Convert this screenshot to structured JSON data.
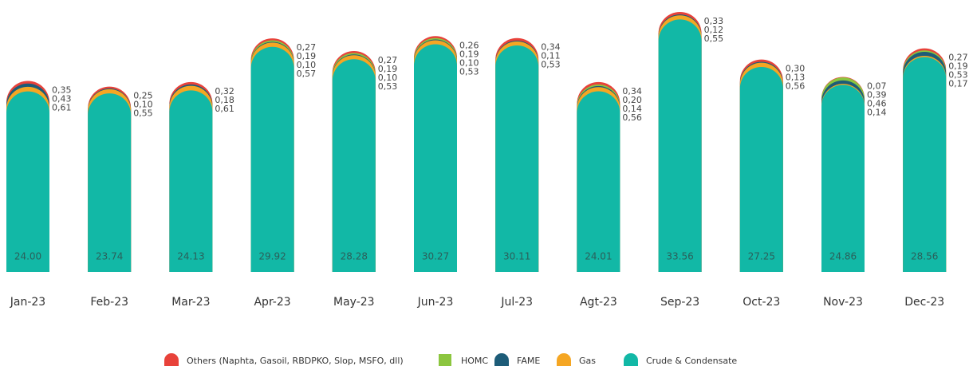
{
  "chart_data": {
    "type": "bar",
    "stacked": true,
    "categories": [
      "Jan-23",
      "Feb-23",
      "Mar-23",
      "Apr-23",
      "May-23",
      "Jun-23",
      "Jul-23",
      "Agt-23",
      "Sep-23",
      "Oct-23",
      "Nov-23",
      "Dec-23"
    ],
    "series": [
      {
        "name": "Crude & Condensate",
        "color": "#12b8a6",
        "values": [
          24.0,
          23.74,
          24.13,
          29.92,
          28.28,
          30.27,
          30.11,
          24.01,
          33.56,
          27.25,
          24.86,
          28.56
        ],
        "value_labels": [
          "24.00",
          "23.74",
          "24.13",
          "29.92",
          "28.28",
          "30.27",
          "30.11",
          "24.01",
          "33.56",
          "27.25",
          "24.86",
          "28.56"
        ]
      },
      {
        "name": "Gas",
        "color": "#f5a623",
        "values": [
          0.61,
          0.55,
          0.61,
          0.57,
          0.53,
          0.53,
          0.53,
          0.56,
          0.55,
          0.56,
          0.14,
          0.17
        ],
        "value_labels": [
          "0,61",
          "0,55",
          "0,61",
          "0,57",
          "0,53",
          "0,53",
          "0,53",
          "0,56",
          "0,55",
          "0,56",
          "0,14",
          "0,17"
        ]
      },
      {
        "name": "FAME",
        "color": "#1d5c78",
        "values": [
          0.43,
          0.1,
          0.18,
          0.1,
          0.1,
          0.1,
          0.11,
          0.14,
          0.12,
          0.13,
          0.46,
          0.53
        ],
        "value_labels": [
          "0,43",
          "0,10",
          "0,18",
          "0,10",
          "0,10",
          "0,10",
          "0,11",
          "0,14",
          "0,12",
          "0,13",
          "0,46",
          "0,53"
        ]
      },
      {
        "name": "HOMC",
        "color": "#8cc63f",
        "values": [
          null,
          null,
          null,
          0.19,
          0.19,
          0.19,
          null,
          0.2,
          null,
          null,
          0.39,
          0.19
        ],
        "value_labels": [
          null,
          null,
          null,
          "0,19",
          "0,19",
          "0,19",
          null,
          "0,20",
          null,
          null,
          "0,39",
          "0,19"
        ]
      },
      {
        "name": "Others (Naphta, Gasoil, RBDPKO, Slop, MSFO, dll)",
        "color": "#e8423a",
        "values": [
          0.35,
          0.25,
          0.32,
          0.27,
          0.27,
          0.26,
          0.34,
          0.34,
          0.33,
          0.3,
          0.07,
          0.27
        ],
        "value_labels": [
          "0,35",
          "0,25",
          "0,32",
          "0,27",
          "0,27",
          "0,26",
          "0,34",
          "0,34",
          "0,33",
          "0,30",
          "0,07",
          "0,27"
        ]
      }
    ],
    "legend": "bottom"
  }
}
